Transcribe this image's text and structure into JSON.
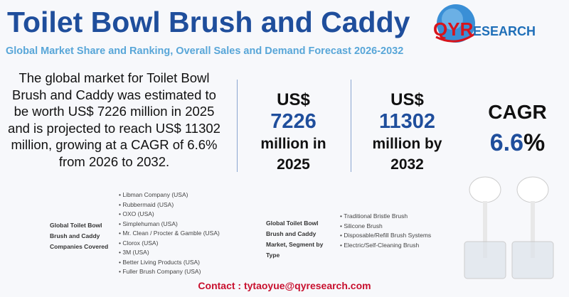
{
  "header": {
    "title": "Toilet Bowl Brush and Caddy",
    "subtitle": "Global Market Share and Ranking, Overall Sales and Demand Forecast 2026-2032"
  },
  "logo": {
    "text_q": "QY",
    "text_r": "R",
    "text_rest": "ESEARCH"
  },
  "description": "The global market for Toilet Bowl Brush and Caddy was estimated to be worth US$ 7226 million in 2025 and is projected to reach US$ 11302 million, growing at a CAGR of 6.6% from 2026 to 2032.",
  "stats": [
    {
      "prefix": "US$",
      "value": "7226",
      "suffix1": "million in",
      "suffix2": "2025"
    },
    {
      "prefix": "US$",
      "value": "11302",
      "suffix1": "million by",
      "suffix2": "2032"
    },
    {
      "prefix": "CAGR",
      "value": "6.6",
      "unit": "%"
    }
  ],
  "companies": {
    "label": "Global Toilet Bowl Brush and Caddy Companies Covered",
    "items": [
      "Libman Company (USA)",
      "Rubbermaid (USA)",
      "OXO (USA)",
      "Simplehuman (USA)",
      "Mr. Clean / Procter & Gamble (USA)",
      "Clorox (USA)",
      "3M (USA)",
      "Better Living Products (USA)",
      "Fuller Brush Company (USA)"
    ]
  },
  "segments": {
    "label": "Global Toilet Bowl Brush and Caddy Market, Segment by Type",
    "items": [
      "Traditional Bristle Brush",
      "Silicone Brush",
      "Disposable/Refill Brush Systems",
      "Electric/Self-Cleaning Brush"
    ]
  },
  "contact": "Contact : tytaoyue@qyresearch.com",
  "colors": {
    "title": "#1f4e9c",
    "subtitle": "#58a6d8",
    "contact": "#c8102e",
    "logo_red": "#d7141c"
  }
}
